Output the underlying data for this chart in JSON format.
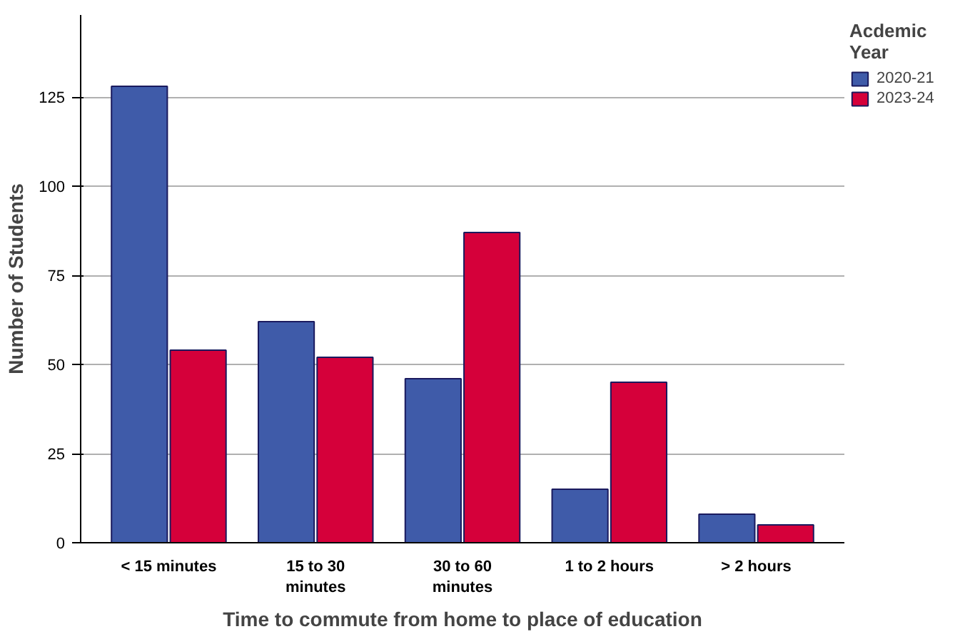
{
  "chart_data": {
    "type": "bar",
    "xlabel": "Time to commute from home to place of education",
    "ylabel": "Number of Students",
    "legend_title": "Acdemic Year",
    "categories": [
      "< 15 minutes",
      "15 to 30 minutes",
      "30 to 60 minutes",
      "1 to 2 hours",
      "> 2 hours"
    ],
    "series": [
      {
        "name": "2020-21",
        "color": "#3f5ba9",
        "values": [
          128,
          62,
          46,
          15,
          8
        ]
      },
      {
        "name": "2023-24",
        "color": "#d5003a",
        "values": [
          54,
          52,
          87,
          45,
          5
        ]
      }
    ],
    "ylim": [
      0,
      148
    ],
    "yticks": [
      0,
      25,
      50,
      75,
      100,
      125
    ],
    "grid": "y",
    "legend": "right"
  }
}
